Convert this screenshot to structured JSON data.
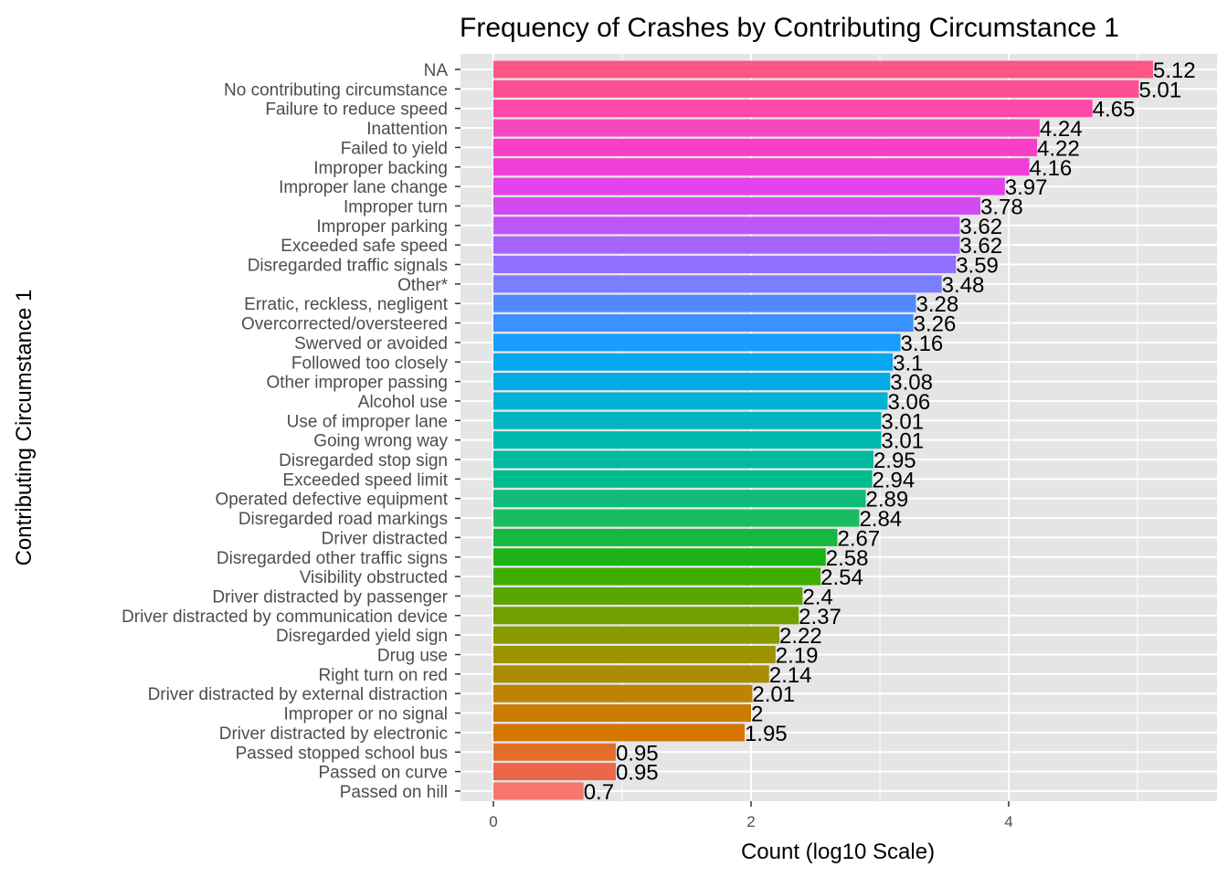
{
  "chart_data": {
    "type": "bar",
    "orientation": "horizontal",
    "title": "Frequency of Crashes by Contributing Circumstance 1",
    "xlabel": "Count (log10 Scale)",
    "ylabel": "Contributing Circumstance 1",
    "xlim": [
      0,
      5.5
    ],
    "x_ticks": [
      "0",
      "2",
      "4"
    ],
    "x_tick_values": [
      0,
      2,
      4
    ],
    "grid": true,
    "legend": "none",
    "categories": [
      "NA",
      "No contributing circumstance",
      "Failure to reduce speed",
      "Inattention",
      "Failed to yield",
      "Improper backing",
      "Improper lane change",
      "Improper turn",
      "Improper parking",
      "Exceeded safe speed",
      "Disregarded traffic signals",
      "Other*",
      "Erratic, reckless, negligent",
      "Overcorrected/oversteered",
      "Swerved or avoided",
      "Followed too closely",
      "Other improper passing",
      "Alcohol use",
      "Use of improper lane",
      "Going wrong way",
      "Disregarded stop sign",
      "Exceeded speed limit",
      "Operated defective equipment",
      "Disregarded road markings",
      "Driver distracted",
      "Disregarded other traffic signs",
      "Visibility obstructed",
      "Driver distracted by passenger",
      "Driver distracted by communication device",
      "Disregarded yield sign",
      "Drug use",
      "Right turn on red",
      "Driver distracted by external distraction",
      "Improper or no signal",
      "Driver distracted by electronic",
      "Passed stopped school bus",
      "Passed on curve",
      "Passed on hill"
    ],
    "values": [
      5.12,
      5.01,
      4.65,
      4.24,
      4.22,
      4.16,
      3.97,
      3.78,
      3.62,
      3.62,
      3.59,
      3.48,
      3.28,
      3.26,
      3.16,
      3.1,
      3.08,
      3.06,
      3.01,
      3.01,
      2.95,
      2.94,
      2.89,
      2.84,
      2.67,
      2.58,
      2.54,
      2.4,
      2.37,
      2.22,
      2.19,
      2.14,
      2.01,
      2,
      1.95,
      0.95,
      0.95,
      0.7
    ],
    "value_labels": [
      "5.12",
      "5.01",
      "4.65",
      "4.24",
      "4.22",
      "4.16",
      "3.97",
      "3.78",
      "3.62",
      "3.62",
      "3.59",
      "3.48",
      "3.28",
      "3.26",
      "3.16",
      "3.1",
      "3.08",
      "3.06",
      "3.01",
      "3.01",
      "2.95",
      "2.94",
      "2.89",
      "2.84",
      "2.67",
      "2.58",
      "2.54",
      "2.4",
      "2.37",
      "2.22",
      "2.19",
      "2.14",
      "2.01",
      "2",
      "1.95",
      "0.95",
      "0.95",
      "0.7"
    ],
    "colors": [
      "#FF5683",
      "#FF4E95",
      "#FF47A8",
      "#F846C0",
      "#FA3EC7",
      "#F03FD8",
      "#E343E8",
      "#D24BF2",
      "#BE55FB",
      "#A863FF",
      "#9270FF",
      "#7A7FFF",
      "#5389FF",
      "#3B91FF",
      "#189EFF",
      "#09A6F0",
      "#00ACE3",
      "#00B2D4",
      "#00B5C2",
      "#00B7B0",
      "#00B99E",
      "#00BB8C",
      "#0FBC77",
      "#1BBC5D",
      "#14B843",
      "#1CB315",
      "#3EAD00",
      "#5AA500",
      "#729F00",
      "#899900",
      "#9C9300",
      "#AB8C00",
      "#BC8400",
      "#C97C00",
      "#D47600",
      "#E36E2C",
      "#EC6749",
      "#F8766D"
    ],
    "panel_background": "#E5E5E5",
    "grid_color": "#FFFFFF"
  }
}
